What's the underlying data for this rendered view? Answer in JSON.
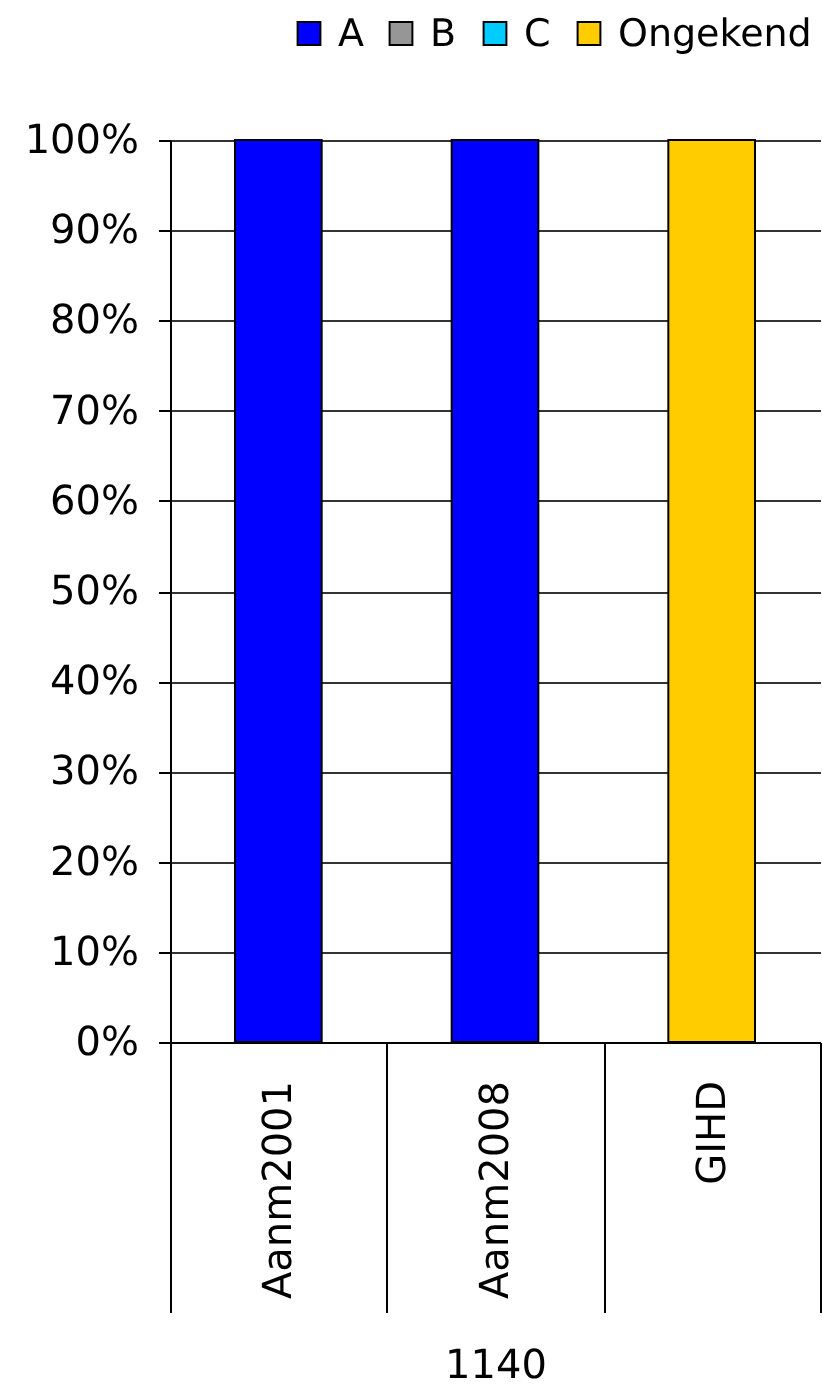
{
  "chart_data": {
    "type": "bar",
    "stacked": true,
    "categories": [
      "Aanm2001",
      "Aanm2008",
      "GIHD"
    ],
    "xlabel": "1140",
    "series": [
      {
        "name": "A",
        "color": "#0000ff",
        "values": [
          100,
          100,
          0
        ]
      },
      {
        "name": "B",
        "color": "#969696",
        "values": [
          0,
          0,
          0
        ]
      },
      {
        "name": "C",
        "color": "#00ccff",
        "values": [
          0,
          0,
          0
        ]
      },
      {
        "name": "Ongekend",
        "color": "#ffcc00",
        "values": [
          0,
          0,
          100
        ]
      }
    ],
    "ylim": [
      0,
      100
    ],
    "yticks": [
      {
        "value": 0,
        "label": "0%"
      },
      {
        "value": 10,
        "label": "10%"
      },
      {
        "value": 20,
        "label": "20%"
      },
      {
        "value": 30,
        "label": "30%"
      },
      {
        "value": 40,
        "label": "40%"
      },
      {
        "value": 50,
        "label": "50%"
      },
      {
        "value": 60,
        "label": "60%"
      },
      {
        "value": 70,
        "label": "70%"
      },
      {
        "value": 80,
        "label": "80%"
      },
      {
        "value": 90,
        "label": "90%"
      },
      {
        "value": 100,
        "label": "100%"
      }
    ],
    "grid": "y",
    "legend": "top right"
  }
}
